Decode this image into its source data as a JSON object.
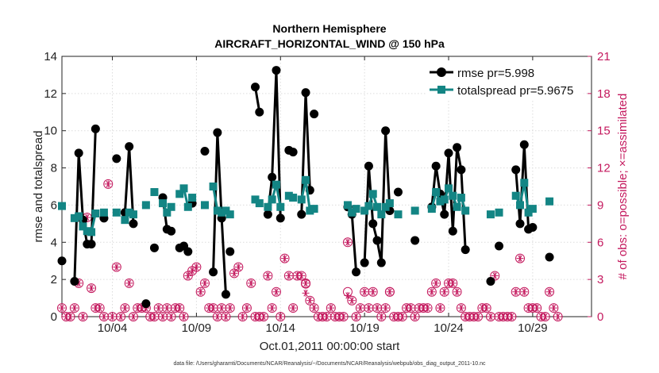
{
  "chart_data": {
    "type": "line",
    "title": "Northern Hemisphere",
    "subtitle": "AIRCRAFT_HORIZONTAL_WIND @ 150 hPa",
    "xlabel": "Oct.01,2011 00:00:00 start",
    "ylabel": "rmse and totalspread",
    "ylabel_right": "# of obs: o=possible; ×=assimilated",
    "footer": "data file: /Users/gharamti/Documents/NCAR/Reanalysis/~/Documents/NCAR/Reanalysis/webpub/obs_diag_output_2011-10.nc",
    "xlim": [
      1,
      32.5
    ],
    "ylim": [
      0,
      14
    ],
    "ylim_right": [
      0,
      21
    ],
    "x_ticks": [
      4,
      9,
      14,
      19,
      24,
      29
    ],
    "x_tick_labels": [
      "10/04",
      "10/09",
      "10/14",
      "10/19",
      "10/24",
      "10/29"
    ],
    "y_ticks": [
      0,
      2,
      4,
      6,
      8,
      10,
      12,
      14
    ],
    "y_tick_labels": [
      "0",
      "2",
      "4",
      "6",
      "8",
      "10",
      "12",
      "14"
    ],
    "y_right_ticks": [
      0,
      3,
      6,
      9,
      12,
      15,
      18,
      21
    ],
    "y_right_tick_labels": [
      "0",
      "3",
      "6",
      "9",
      "12",
      "15",
      "18",
      "21"
    ],
    "legend_position": "top-right",
    "colors": {
      "rmse": "#000000",
      "totalspread": "#138584",
      "obs": "#c4195e"
    },
    "series": [
      {
        "name": "rmse pr=5.998",
        "key": "rmse",
        "segments": [
          [
            [
              1.0,
              3.0
            ]
          ],
          [
            [
              1.75,
              1.9
            ],
            [
              2.0,
              8.8
            ],
            [
              2.25,
              5.2
            ],
            [
              2.5,
              3.9
            ],
            [
              2.75,
              3.9
            ],
            [
              3.0,
              10.1
            ]
          ],
          [
            [
              3.5,
              5.3
            ]
          ],
          [
            [
              4.25,
              8.5
            ]
          ],
          [
            [
              4.75,
              5.6
            ],
            [
              5.0,
              9.15
            ],
            [
              5.25,
              5.0
            ]
          ],
          [
            [
              6.0,
              0.7
            ]
          ],
          [
            [
              6.5,
              3.7
            ]
          ],
          [
            [
              7.0,
              6.4
            ],
            [
              7.25,
              4.7
            ]
          ],
          [
            [
              7.5,
              4.6
            ]
          ],
          [
            [
              8.0,
              3.7
            ],
            [
              8.25,
              3.8
            ],
            [
              8.5,
              3.5
            ]
          ],
          [
            [
              8.75,
              6.1
            ]
          ],
          [
            [
              9.5,
              8.9
            ]
          ],
          [
            [
              10.0,
              2.4
            ],
            [
              10.25,
              9.9
            ],
            [
              10.5,
              5.3
            ],
            [
              10.75,
              1.2
            ]
          ],
          [
            [
              11.0,
              3.5
            ]
          ],
          [
            [
              12.5,
              12.35
            ],
            [
              12.75,
              11.0
            ]
          ],
          [
            [
              13.25,
              5.5
            ],
            [
              13.5,
              7.5
            ],
            [
              13.75,
              13.25
            ],
            [
              14.0,
              5.3
            ]
          ],
          [
            [
              14.5,
              8.95
            ],
            [
              14.75,
              8.85
            ]
          ],
          [
            [
              15.25,
              5.5
            ],
            [
              15.5,
              12.05
            ],
            [
              15.75,
              6.8
            ]
          ],
          [
            [
              16.0,
              10.9
            ]
          ],
          [
            [
              18.0,
              5.9
            ],
            [
              18.25,
              5.5
            ],
            [
              18.5,
              2.4
            ]
          ],
          [
            [
              19.0,
              2.9
            ],
            [
              19.25,
              8.1
            ],
            [
              19.5,
              5.0
            ],
            [
              19.75,
              4.1
            ],
            [
              20.0,
              2.9
            ],
            [
              20.25,
              10.0
            ],
            [
              20.5,
              5.7
            ]
          ],
          [
            [
              21.0,
              6.7
            ]
          ],
          [
            [
              22.0,
              4.1
            ]
          ],
          [
            [
              23.0,
              5.9
            ],
            [
              23.25,
              8.1
            ],
            [
              23.5,
              6.6
            ],
            [
              23.75,
              5.5
            ],
            [
              24.0,
              8.8
            ],
            [
              24.25,
              4.6
            ],
            [
              24.5,
              9.1
            ],
            [
              24.75,
              7.9
            ],
            [
              25.0,
              3.6
            ]
          ],
          [
            [
              26.5,
              1.9
            ]
          ],
          [
            [
              27.0,
              3.8
            ]
          ],
          [
            [
              28.0,
              7.9
            ],
            [
              28.25,
              5.0
            ],
            [
              28.5,
              9.25
            ],
            [
              28.75,
              4.7
            ],
            [
              29.0,
              4.8
            ]
          ],
          [
            [
              30.0,
              3.2
            ]
          ]
        ]
      },
      {
        "name": "totalspread pr=5.9675",
        "key": "totalspread",
        "segments": [
          [
            [
              1.0,
              5.95
            ]
          ],
          [
            [
              1.75,
              5.3
            ],
            [
              2.0,
              5.4
            ],
            [
              2.25,
              4.85
            ],
            [
              2.5,
              4.6
            ],
            [
              2.75,
              4.55
            ],
            [
              3.0,
              5.55
            ]
          ],
          [
            [
              3.5,
              5.6
            ]
          ],
          [
            [
              4.25,
              5.6
            ]
          ],
          [
            [
              4.75,
              5.2
            ],
            [
              5.0,
              5.6
            ],
            [
              5.25,
              5.5
            ]
          ],
          [
            [
              6.0,
              6.0
            ]
          ],
          [
            [
              6.5,
              6.7
            ]
          ],
          [
            [
              7.0,
              6.1
            ],
            [
              7.25,
              5.6
            ]
          ],
          [
            [
              7.5,
              5.9
            ]
          ],
          [
            [
              8.0,
              6.6
            ],
            [
              8.25,
              6.9
            ],
            [
              8.5,
              5.9
            ]
          ],
          [
            [
              8.75,
              6.4
            ]
          ],
          [
            [
              9.5,
              6.0
            ]
          ],
          [
            [
              10.0,
              7.0
            ],
            [
              10.25,
              5.7
            ],
            [
              10.5,
              5.6
            ],
            [
              10.75,
              5.7
            ]
          ],
          [
            [
              11.0,
              5.5
            ]
          ],
          [
            [
              12.5,
              6.3
            ],
            [
              12.75,
              6.1
            ]
          ],
          [
            [
              13.25,
              5.9
            ],
            [
              13.5,
              6.3
            ],
            [
              13.75,
              7.1
            ],
            [
              14.0,
              5.9
            ]
          ],
          [
            [
              14.5,
              6.5
            ],
            [
              14.75,
              6.4
            ]
          ],
          [
            [
              15.25,
              6.3
            ],
            [
              15.5,
              7.35
            ],
            [
              15.75,
              5.7
            ]
          ],
          [
            [
              16.0,
              5.8
            ]
          ],
          [
            [
              18.0,
              6.0
            ],
            [
              18.25,
              5.6
            ],
            [
              18.5,
              5.8
            ]
          ],
          [
            [
              19.0,
              5.7
            ],
            [
              19.25,
              5.95
            ],
            [
              19.5,
              6.6
            ],
            [
              19.75,
              5.9
            ],
            [
              20.0,
              5.5
            ],
            [
              20.25,
              5.9
            ],
            [
              20.5,
              6.1
            ]
          ],
          [
            [
              21.0,
              5.5
            ]
          ],
          [
            [
              22.0,
              5.7
            ]
          ],
          [
            [
              23.0,
              5.8
            ],
            [
              23.25,
              6.7
            ],
            [
              23.5,
              6.2
            ],
            [
              23.75,
              6.3
            ],
            [
              24.0,
              6.9
            ],
            [
              24.25,
              6.5
            ],
            [
              24.5,
              5.9
            ],
            [
              24.75,
              6.4
            ],
            [
              25.0,
              5.7
            ]
          ],
          [
            [
              26.5,
              5.5
            ]
          ],
          [
            [
              27.0,
              5.6
            ]
          ],
          [
            [
              28.0,
              6.5
            ],
            [
              28.25,
              6.0
            ],
            [
              28.5,
              7.2
            ],
            [
              28.75,
              5.6
            ],
            [
              29.0,
              5.8
            ]
          ],
          [
            [
              30.0,
              6.2
            ]
          ]
        ]
      }
    ],
    "obs_possible": [
      [
        1.0,
        0.7
      ],
      [
        1.25,
        0.0
      ],
      [
        1.5,
        0.0
      ],
      [
        1.75,
        0.7
      ],
      [
        2.0,
        2.7
      ],
      [
        2.25,
        0.0
      ],
      [
        2.5,
        8.0
      ],
      [
        2.75,
        2.3
      ],
      [
        3.0,
        0.7
      ],
      [
        3.25,
        0.7
      ],
      [
        3.5,
        0.0
      ],
      [
        3.75,
        10.7
      ],
      [
        4.0,
        0.0
      ],
      [
        4.25,
        4.0
      ],
      [
        4.5,
        0.0
      ],
      [
        4.75,
        0.7
      ],
      [
        5.0,
        2.7
      ],
      [
        5.25,
        0.0
      ],
      [
        5.5,
        0.7
      ],
      [
        5.75,
        0.7
      ],
      [
        6.0,
        0.7
      ],
      [
        6.25,
        0.0
      ],
      [
        6.5,
        0.0
      ],
      [
        6.75,
        0.7
      ],
      [
        7.0,
        0.0
      ],
      [
        7.25,
        0.7
      ],
      [
        7.5,
        0.0
      ],
      [
        7.75,
        0.7
      ],
      [
        8.0,
        0.7
      ],
      [
        8.25,
        0.0
      ],
      [
        8.5,
        3.3
      ],
      [
        8.75,
        3.7
      ],
      [
        9.0,
        4.0
      ],
      [
        9.25,
        2.0
      ],
      [
        9.5,
        2.7
      ],
      [
        9.75,
        0.7
      ],
      [
        10.0,
        0.7
      ],
      [
        10.25,
        0.0
      ],
      [
        10.5,
        0.7
      ],
      [
        10.75,
        0.0
      ],
      [
        11.0,
        0.7
      ],
      [
        11.25,
        3.5
      ],
      [
        11.5,
        4.0
      ],
      [
        11.75,
        0.0
      ],
      [
        12.0,
        0.7
      ],
      [
        12.25,
        2.7
      ],
      [
        12.5,
        0.0
      ],
      [
        12.75,
        0.0
      ],
      [
        13.0,
        0.0
      ],
      [
        13.25,
        3.3
      ],
      [
        13.5,
        0.7
      ],
      [
        13.75,
        2.0
      ],
      [
        14.0,
        0.0
      ],
      [
        14.25,
        4.7
      ],
      [
        14.5,
        3.3
      ],
      [
        14.75,
        0.7
      ],
      [
        15.0,
        3.3
      ],
      [
        15.25,
        3.3
      ],
      [
        15.5,
        2.7
      ],
      [
        15.75,
        1.3
      ],
      [
        16.0,
        0.7
      ],
      [
        16.25,
        0.0
      ],
      [
        16.5,
        0.0
      ],
      [
        16.75,
        0.0
      ],
      [
        17.0,
        0.7
      ],
      [
        17.25,
        0.0
      ],
      [
        17.5,
        0.0
      ],
      [
        17.75,
        0.0
      ],
      [
        18.0,
        6.0
      ],
      [
        18.25,
        1.3
      ],
      [
        18.5,
        0.0
      ],
      [
        18.75,
        0.7
      ],
      [
        19.0,
        2.0
      ],
      [
        19.25,
        0.7
      ],
      [
        19.5,
        2.0
      ],
      [
        19.75,
        0.7
      ],
      [
        20.0,
        0.0
      ],
      [
        20.25,
        0.7
      ],
      [
        20.5,
        2.0
      ],
      [
        20.75,
        0.0
      ],
      [
        21.0,
        0.0
      ],
      [
        21.25,
        0.0
      ],
      [
        21.5,
        0.7
      ],
      [
        21.75,
        0.7
      ],
      [
        22.0,
        0.0
      ],
      [
        22.25,
        0.7
      ],
      [
        22.5,
        0.7
      ],
      [
        22.75,
        0.7
      ],
      [
        23.0,
        2.0
      ],
      [
        23.25,
        2.7
      ],
      [
        23.5,
        0.7
      ],
      [
        23.75,
        2.0
      ],
      [
        24.0,
        2.7
      ],
      [
        24.25,
        2.7
      ],
      [
        24.5,
        2.0
      ],
      [
        24.75,
        0.7
      ],
      [
        25.0,
        0.0
      ],
      [
        25.25,
        0.0
      ],
      [
        25.5,
        0.0
      ],
      [
        25.75,
        0.0
      ],
      [
        26.0,
        0.7
      ],
      [
        26.25,
        0.7
      ],
      [
        26.5,
        0.0
      ],
      [
        26.75,
        3.3
      ],
      [
        27.0,
        0.0
      ],
      [
        27.25,
        0.0
      ],
      [
        27.5,
        0.0
      ],
      [
        27.75,
        0.0
      ],
      [
        28.0,
        2.0
      ],
      [
        28.25,
        4.7
      ],
      [
        28.5,
        2.0
      ],
      [
        28.75,
        0.7
      ],
      [
        29.0,
        0.7
      ],
      [
        29.25,
        0.7
      ],
      [
        29.5,
        0.0
      ],
      [
        29.75,
        0.0
      ],
      [
        30.0,
        2.0
      ],
      [
        30.25,
        0.7
      ],
      [
        30.5,
        0.0
      ]
    ],
    "obs_assimilated_extra": [
      [
        15.5,
        1.9
      ],
      [
        18.0,
        1.7
      ]
    ],
    "obs_possible_only": [
      [
        15.5,
        2.65
      ],
      [
        20.5,
        2.0
      ],
      [
        18.0,
        2.0
      ]
    ]
  }
}
